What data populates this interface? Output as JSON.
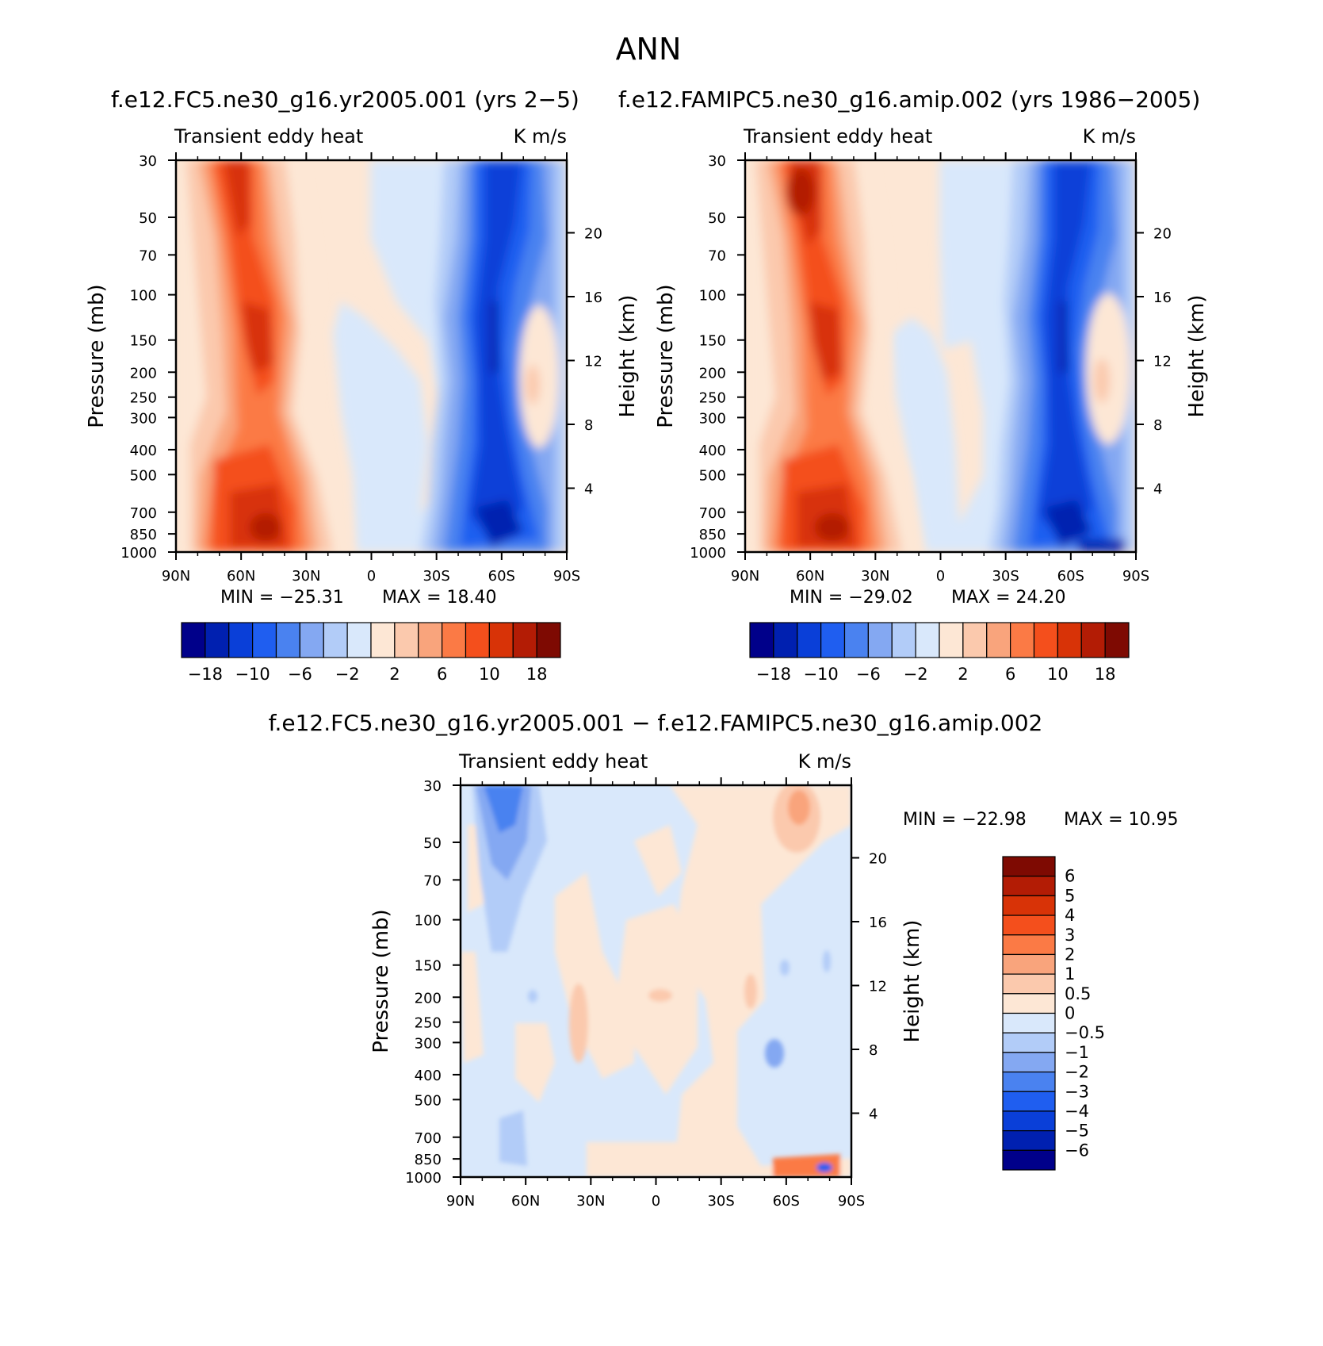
{
  "figure": {
    "season": "ANN",
    "colors": {
      "abs_levels": [
        "#00008a",
        "#0020b0",
        "#0a3fd8",
        "#1f5ef0",
        "#4a82f0",
        "#84a8f2",
        "#b2ccf8",
        "#d9e8fb",
        "#fde7d5",
        "#fbc9ad",
        "#f9a47c",
        "#fb7a45",
        "#f44f1c",
        "#d83307",
        "#b31c05",
        "#7e0a02"
      ],
      "diff_levels": [
        "#00008a",
        "#0020b0",
        "#0a3fd8",
        "#1f5ef0",
        "#4a82f0",
        "#84a8f2",
        "#b2ccf8",
        "#d9e8fb",
        "#fde7d5",
        "#fbc9ad",
        "#f9a47c",
        "#fb7a45",
        "#f44f1c",
        "#d83307",
        "#b31c05",
        "#7e0a02"
      ]
    }
  },
  "chart_data": [
    {
      "type": "heatmap",
      "case_title": "f.e12.FC5.ne30_g16.yr2005.001 (yrs 2-5)",
      "variable": "Transient eddy heat",
      "units": "K m/s",
      "ylabel": "Pressure (mb)",
      "ylabel_right": "Height (km)",
      "x_ticks": [
        "90N",
        "60N",
        "30N",
        "0",
        "30S",
        "60S",
        "90S"
      ],
      "y_ticks": [
        "30",
        "50",
        "70",
        "100",
        "150",
        "200",
        "250",
        "300",
        "400",
        "500",
        "700",
        "850",
        "1000"
      ],
      "y_right_ticks": [
        "4",
        "8",
        "12",
        "16",
        "20"
      ],
      "min_label": "MIN = -25.31",
      "max_label": "MAX = 18.40",
      "min": -25.31,
      "max": 18.4,
      "colorbar_labels": [
        "-18",
        "-10",
        "-6",
        "-2",
        "2",
        "6",
        "10",
        "18"
      ]
    },
    {
      "type": "heatmap",
      "case_title": "f.e12.FAMIPC5.ne30_g16.amip.002 (yrs 1986-2005)",
      "variable": "Transient eddy heat",
      "units": "K m/s",
      "ylabel": "Pressure (mb)",
      "ylabel_right": "Height (km)",
      "x_ticks": [
        "90N",
        "60N",
        "30N",
        "0",
        "30S",
        "60S",
        "90S"
      ],
      "y_ticks": [
        "30",
        "50",
        "70",
        "100",
        "150",
        "200",
        "250",
        "300",
        "400",
        "500",
        "700",
        "850",
        "1000"
      ],
      "y_right_ticks": [
        "4",
        "8",
        "12",
        "16",
        "20"
      ],
      "min_label": "MIN = -29.02",
      "max_label": "MAX = 24.20",
      "min": -29.02,
      "max": 24.2,
      "colorbar_labels": [
        "-18",
        "-10",
        "-6",
        "-2",
        "2",
        "6",
        "10",
        "18"
      ]
    },
    {
      "type": "heatmap",
      "case_title": "f.e12.FC5.ne30_g16.yr2005.001 - f.e12.FAMIPC5.ne30_g16.amip.002",
      "variable": "Transient eddy heat",
      "units": "K m/s",
      "ylabel": "Pressure (mb)",
      "ylabel_right": "Height (km)",
      "x_ticks": [
        "90N",
        "60N",
        "30N",
        "0",
        "30S",
        "60S",
        "90S"
      ],
      "y_ticks": [
        "30",
        "50",
        "70",
        "100",
        "150",
        "200",
        "250",
        "300",
        "400",
        "500",
        "700",
        "850",
        "1000"
      ],
      "y_right_ticks": [
        "4",
        "8",
        "12",
        "16",
        "20"
      ],
      "min_label": "MIN = -22.98",
      "max_label": "MAX = 10.95",
      "min": -22.98,
      "max": 10.95,
      "colorbar_labels": [
        "6",
        "5",
        "4",
        "3",
        "2",
        "1",
        "0.5",
        "0",
        "-0.5",
        "-1",
        "-2",
        "-3",
        "-4",
        "-5",
        "-6"
      ]
    }
  ]
}
